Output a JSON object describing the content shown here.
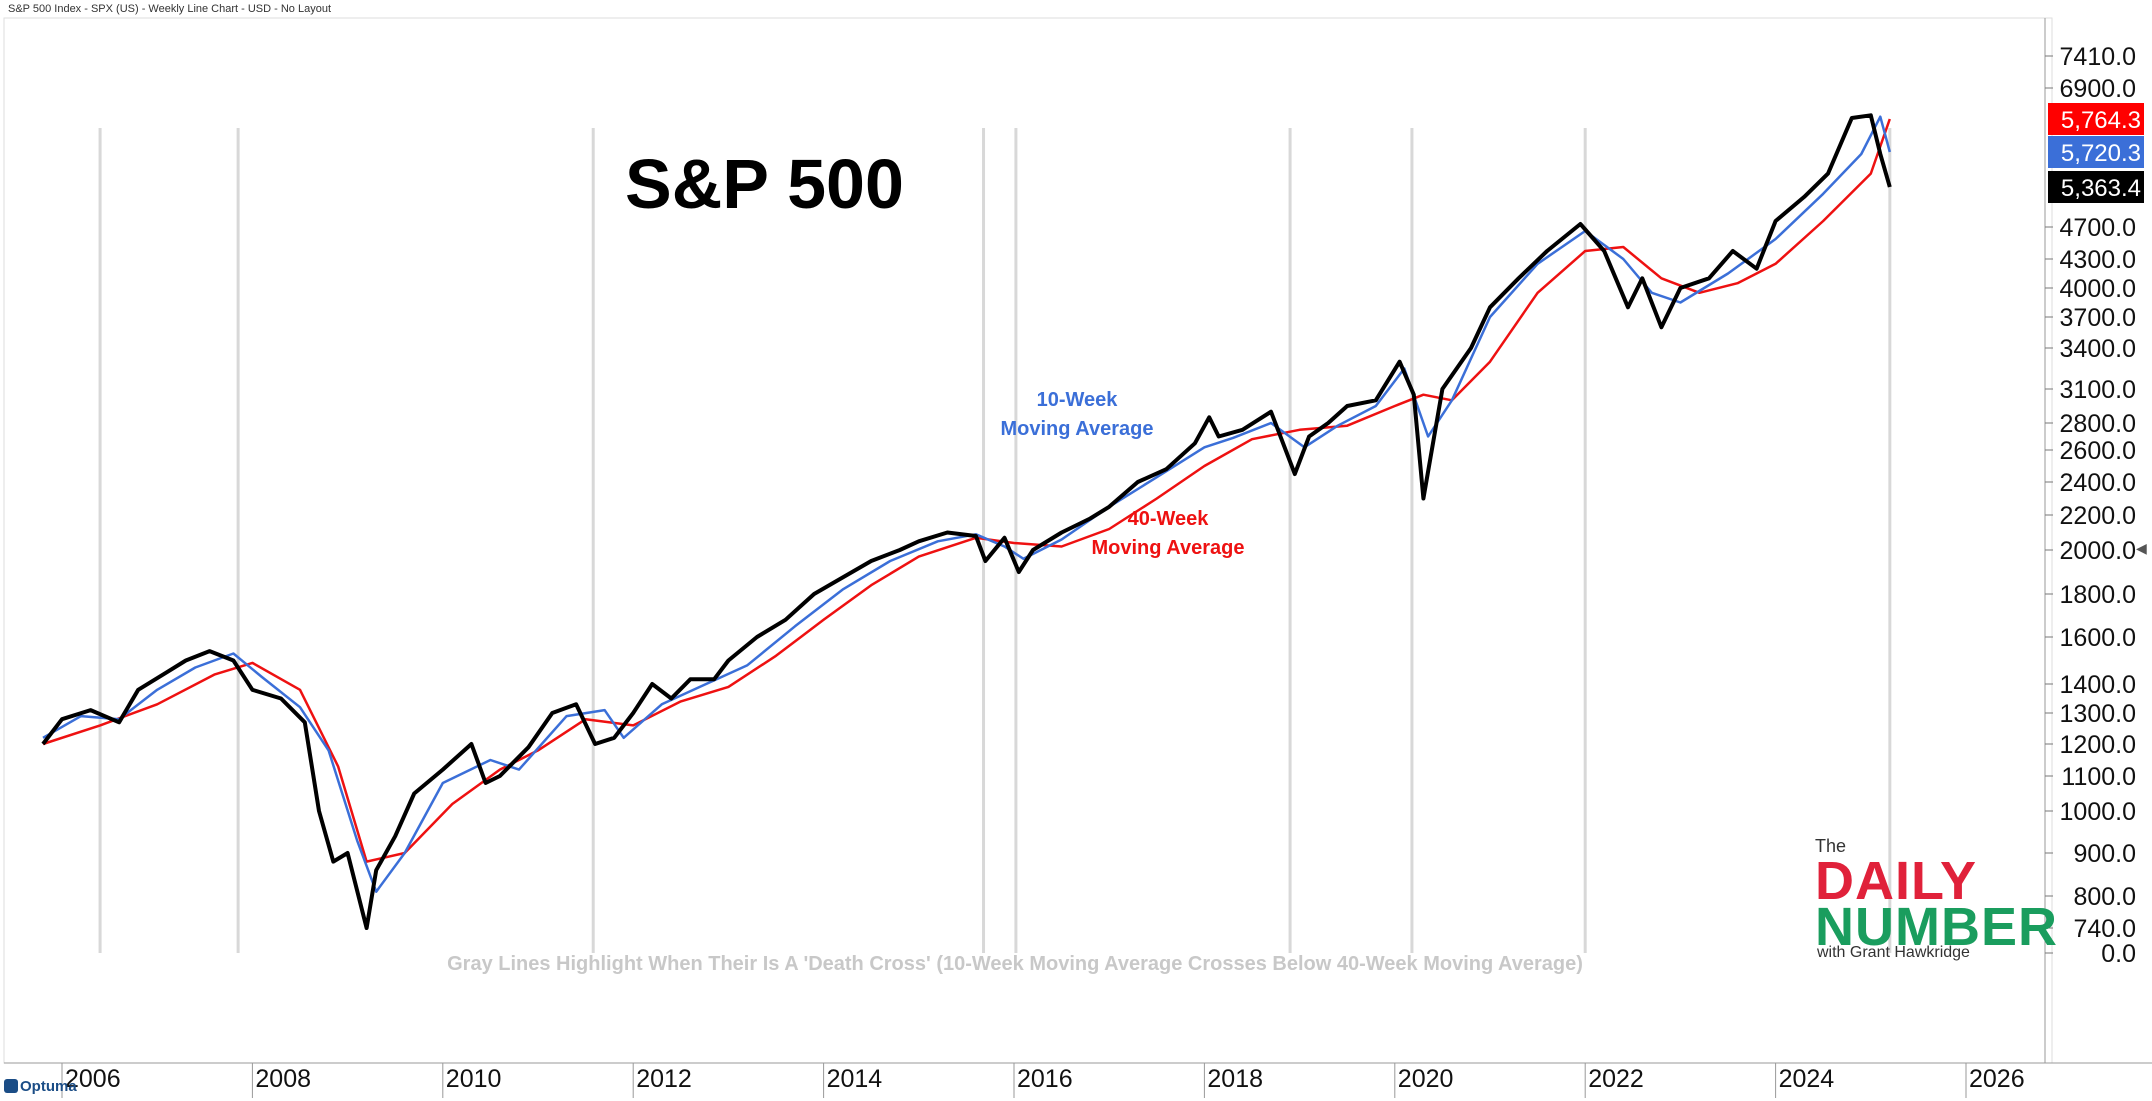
{
  "header": {
    "title": "S&P 500 Index - SPX (US) - Weekly Line Chart - USD - No Layout"
  },
  "logo": {
    "the": "The",
    "daily": "DAILY",
    "number": "NUMBER",
    "byline": "with Grant Hawkridge"
  },
  "footer": {
    "brand": "Optuma"
  },
  "badges": [
    {
      "value": "5,764.3",
      "color": "#ff0000",
      "series": "40-Week Moving Average"
    },
    {
      "value": "5,720.3",
      "color": "#3b6fd8",
      "series": "10-Week Moving Average"
    },
    {
      "value": "5,363.4",
      "color": "#000000",
      "series": "S&P 500"
    }
  ],
  "chart_data": {
    "type": "line",
    "title": "S&P 500",
    "xlabel": "",
    "ylabel": "",
    "x_ticks": [
      "2006",
      "2008",
      "2010",
      "2012",
      "2014",
      "2016",
      "2018",
      "2020",
      "2022",
      "2024",
      "2026"
    ],
    "y_ticks": [
      "7410.0",
      "6900.0",
      "4700.0",
      "4300.0",
      "4000.0",
      "3700.0",
      "3400.0",
      "3100.0",
      "2800.0",
      "2600.0",
      "2400.0",
      "2200.0",
      "2000.0",
      "1800.0",
      "1600.0",
      "1400.0",
      "1300.0",
      "1200.0",
      "1100.0",
      "1000.0",
      "900.0",
      "800.0",
      "740.0",
      "0.0"
    ],
    "xlim": [
      2005.75,
      2026.9
    ],
    "annotations": {
      "ma10": [
        "10-Week",
        "Moving Average"
      ],
      "ma40": [
        "40-Week",
        "Moving Average"
      ],
      "footnote": "Gray Lines Highlight When Their Is A 'Death Cross' (10-Week Moving Average Crosses Below 40-Week Moving Average)"
    },
    "death_cross_years": [
      2006.4,
      2007.85,
      2011.58,
      2015.68,
      2016.02,
      2018.9,
      2020.18,
      2022.0,
      2025.2
    ],
    "series": [
      {
        "name": "S&P 500",
        "color": "#000000",
        "x": [
          2005.8,
          2006.0,
          2006.3,
          2006.6,
          2006.8,
          2007.1,
          2007.3,
          2007.55,
          2007.8,
          2008.0,
          2008.3,
          2008.55,
          2008.7,
          2008.85,
          2009.0,
          2009.2,
          2009.3,
          2009.5,
          2009.7,
          2010.0,
          2010.3,
          2010.45,
          2010.6,
          2010.9,
          2011.15,
          2011.4,
          2011.6,
          2011.8,
          2012.0,
          2012.2,
          2012.4,
          2012.6,
          2012.85,
          2013.0,
          2013.3,
          2013.6,
          2013.9,
          2014.1,
          2014.5,
          2014.8,
          2015.0,
          2015.3,
          2015.6,
          2015.7,
          2015.9,
          2016.05,
          2016.2,
          2016.5,
          2016.8,
          2017.0,
          2017.3,
          2017.6,
          2017.9,
          2018.05,
          2018.15,
          2018.4,
          2018.7,
          2018.95,
          2019.1,
          2019.3,
          2019.5,
          2019.8,
          2020.05,
          2020.2,
          2020.3,
          2020.5,
          2020.8,
          2021.0,
          2021.3,
          2021.6,
          2021.95,
          2022.2,
          2022.45,
          2022.6,
          2022.8,
          2023.0,
          2023.3,
          2023.55,
          2023.8,
          2024.0,
          2024.3,
          2024.55,
          2024.8,
          2025.0,
          2025.1,
          2025.2
        ],
        "values": [
          1200,
          1280,
          1310,
          1270,
          1380,
          1450,
          1500,
          1540,
          1500,
          1380,
          1350,
          1270,
          1000,
          880,
          900,
          740,
          860,
          940,
          1050,
          1120,
          1200,
          1080,
          1100,
          1190,
          1300,
          1330,
          1200,
          1220,
          1300,
          1400,
          1350,
          1420,
          1420,
          1500,
          1600,
          1680,
          1800,
          1850,
          1950,
          2000,
          2050,
          2100,
          2080,
          1950,
          2070,
          1900,
          2000,
          2100,
          2180,
          2250,
          2400,
          2480,
          2650,
          2850,
          2700,
          2750,
          2900,
          2450,
          2700,
          2800,
          2950,
          3000,
          3300,
          3050,
          2300,
          3100,
          3400,
          3800,
          4100,
          4400,
          4750,
          4400,
          3800,
          4100,
          3600,
          4000,
          4100,
          4400,
          4200,
          4800,
          5200,
          5500,
          5800,
          5900,
          5700,
          5363.4
        ]
      },
      {
        "name": "10-Week Moving Average",
        "color": "#3b6fd8",
        "x": [
          2005.8,
          2006.2,
          2006.6,
          2007.0,
          2007.4,
          2007.8,
          2008.1,
          2008.5,
          2008.8,
          2009.1,
          2009.3,
          2009.6,
          2010.0,
          2010.5,
          2010.8,
          2011.3,
          2011.7,
          2011.9,
          2012.3,
          2012.7,
          2013.2,
          2013.7,
          2014.2,
          2014.7,
          2015.2,
          2015.6,
          2015.9,
          2016.1,
          2016.5,
          2017.0,
          2017.5,
          2018.0,
          2018.3,
          2018.7,
          2019.05,
          2019.4,
          2019.8,
          2020.1,
          2020.35,
          2020.6,
          2021.0,
          2021.5,
          2022.0,
          2022.4,
          2022.7,
          2023.0,
          2023.5,
          2024.0,
          2024.5,
          2024.9,
          2025.1,
          2025.2
        ],
        "values": [
          1220,
          1290,
          1280,
          1380,
          1470,
          1530,
          1430,
          1320,
          1180,
          930,
          810,
          900,
          1080,
          1150,
          1120,
          1290,
          1310,
          1220,
          1330,
          1390,
          1480,
          1650,
          1820,
          1950,
          2050,
          2090,
          2020,
          1960,
          2060,
          2250,
          2430,
          2620,
          2690,
          2800,
          2620,
          2780,
          2950,
          3250,
          2700,
          3000,
          3700,
          4250,
          4650,
          4300,
          3950,
          3850,
          4150,
          4550,
          5250,
          5700,
          5850,
          5720.3
        ]
      },
      {
        "name": "40-Week Moving Average",
        "color": "#ee1111",
        "x": [
          2005.8,
          2006.4,
          2007.0,
          2007.6,
          2008.0,
          2008.5,
          2008.9,
          2009.2,
          2009.6,
          2010.1,
          2010.6,
          2011.0,
          2011.5,
          2012.0,
          2012.5,
          2013.0,
          2013.5,
          2014.0,
          2014.5,
          2015.0,
          2015.6,
          2016.0,
          2016.5,
          2017.0,
          2017.5,
          2018.0,
          2018.5,
          2019.0,
          2019.5,
          2020.0,
          2020.3,
          2020.6,
          2021.0,
          2021.5,
          2022.0,
          2022.4,
          2022.8,
          2023.2,
          2023.6,
          2024.0,
          2024.5,
          2025.0,
          2025.2
        ],
        "values": [
          1200,
          1260,
          1330,
          1440,
          1490,
          1380,
          1130,
          880,
          900,
          1020,
          1120,
          1180,
          1280,
          1260,
          1340,
          1390,
          1520,
          1680,
          1840,
          1970,
          2070,
          2040,
          2020,
          2120,
          2300,
          2500,
          2680,
          2750,
          2780,
          2950,
          3050,
          3000,
          3300,
          3950,
          4400,
          4450,
          4100,
          3950,
          4050,
          4250,
          4800,
          5500,
          5764.3
        ]
      }
    ]
  }
}
